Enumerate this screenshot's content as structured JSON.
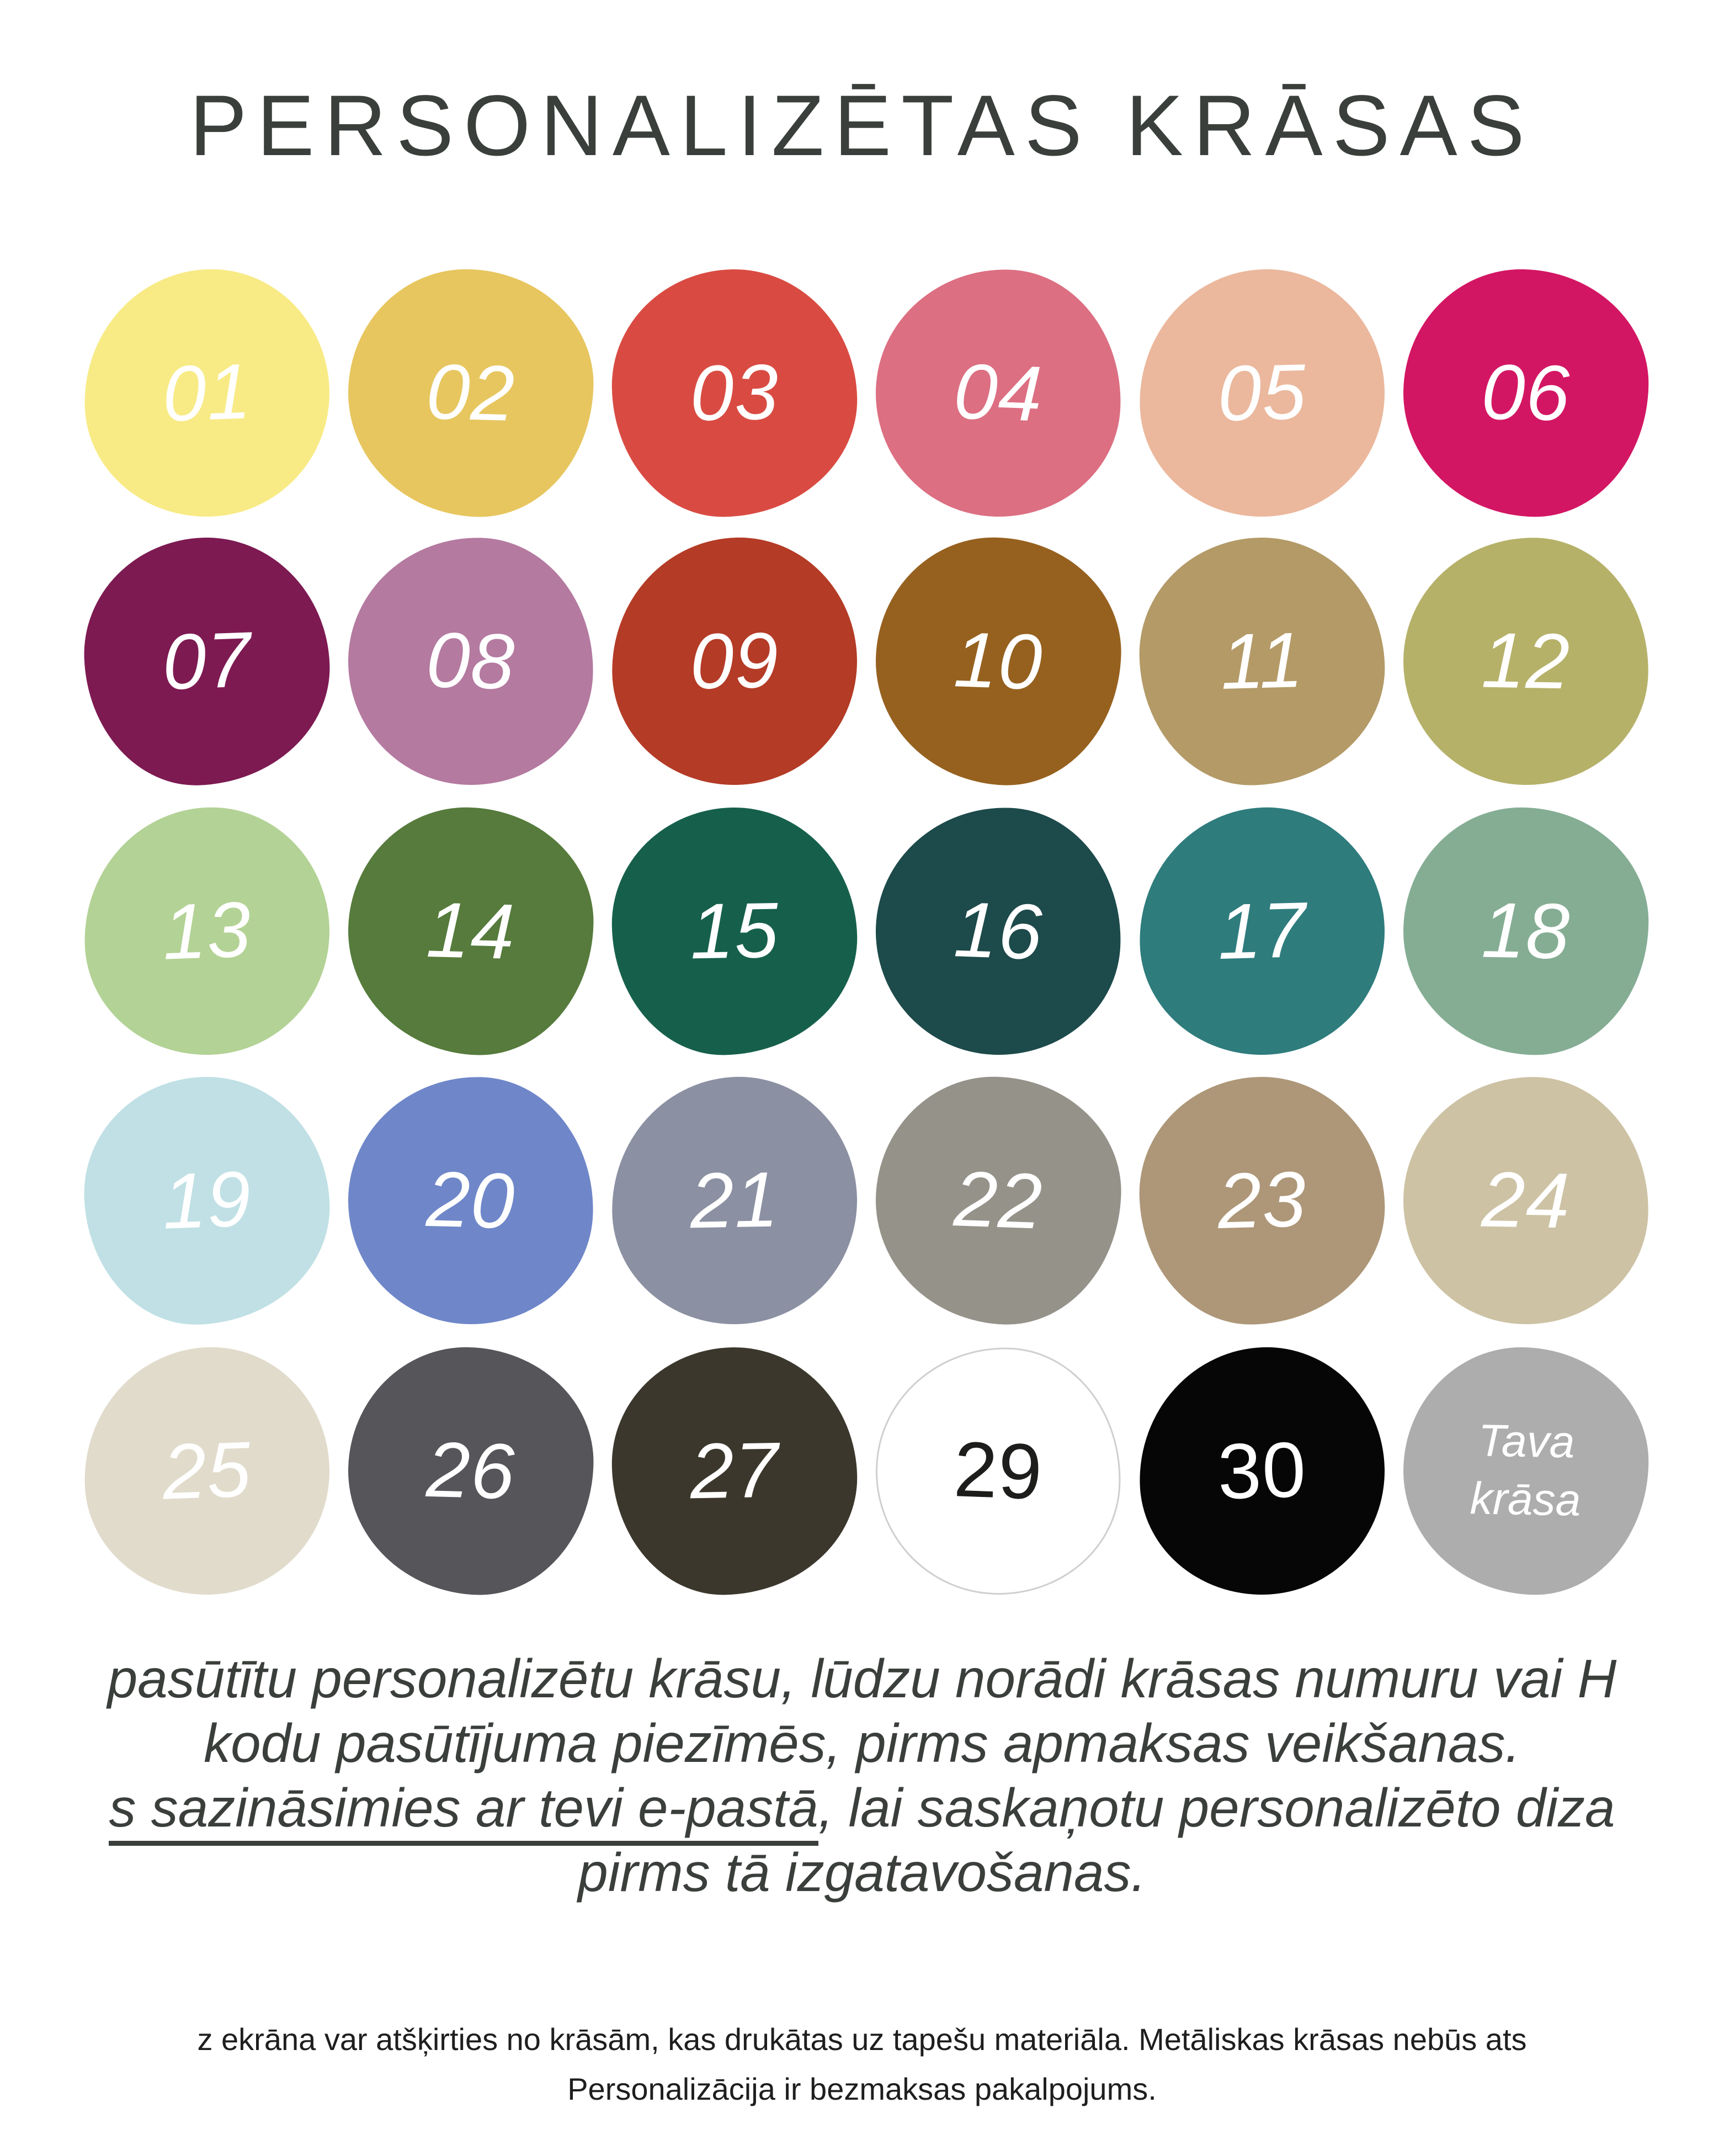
{
  "header": {
    "title": "PERSONALIZĒTAS KRĀSAS",
    "title_color": "#3a3f3b"
  },
  "swatches": [
    {
      "label": "01",
      "color": "#F8EB86",
      "text_color": "#FFFFFF",
      "italic": true
    },
    {
      "label": "02",
      "color": "#E7C65F",
      "text_color": "#FFFFFF",
      "italic": true
    },
    {
      "label": "03",
      "color": "#D94B42",
      "text_color": "#FFFFFF",
      "italic": true
    },
    {
      "label": "04",
      "color": "#DC6F82",
      "text_color": "#FFFFFF",
      "italic": true
    },
    {
      "label": "05",
      "color": "#EBB89D",
      "text_color": "#FFFFFF",
      "italic": true
    },
    {
      "label": "06",
      "color": "#D31663",
      "text_color": "#FFFFFF",
      "italic": true
    },
    {
      "label": "07",
      "color": "#7D1A52",
      "text_color": "#FFFFFF",
      "italic": true
    },
    {
      "label": "08",
      "color": "#B47AA0",
      "text_color": "#FFFFFF",
      "italic": true
    },
    {
      "label": "09",
      "color": "#B43B26",
      "text_color": "#FFFFFF",
      "italic": true
    },
    {
      "label": "10",
      "color": "#96611F",
      "text_color": "#FFFFFF",
      "italic": true
    },
    {
      "label": "11",
      "color": "#B39A67",
      "text_color": "#FFFFFF",
      "italic": true
    },
    {
      "label": "12",
      "color": "#B6B169",
      "text_color": "#FFFFFF",
      "italic": true
    },
    {
      "label": "13",
      "color": "#B3D295",
      "text_color": "#FFFFFF",
      "italic": true
    },
    {
      "label": "14",
      "color": "#567B3C",
      "text_color": "#FFFFFF",
      "italic": true
    },
    {
      "label": "15",
      "color": "#16604B",
      "text_color": "#FFFFFF",
      "italic": true
    },
    {
      "label": "16",
      "color": "#1D4A4B",
      "text_color": "#FFFFFF",
      "italic": true
    },
    {
      "label": "17",
      "color": "#2F7C7D",
      "text_color": "#FFFFFF",
      "italic": true
    },
    {
      "label": "18",
      "color": "#85AD94",
      "text_color": "#FFFFFF",
      "italic": true
    },
    {
      "label": "19",
      "color": "#C0E0E5",
      "text_color": "#FFFFFF",
      "italic": true
    },
    {
      "label": "20",
      "color": "#6F87C9",
      "text_color": "#FFFFFF",
      "italic": true
    },
    {
      "label": "21",
      "color": "#8B90A2",
      "text_color": "#FFFFFF",
      "italic": true
    },
    {
      "label": "22",
      "color": "#95928A",
      "text_color": "#FFFFFF",
      "italic": true
    },
    {
      "label": "23",
      "color": "#AD9778",
      "text_color": "#FFFFFF",
      "italic": true
    },
    {
      "label": "24",
      "color": "#CDC2A4",
      "text_color": "#FFFFFF",
      "italic": true
    },
    {
      "label": "25",
      "color": "#E1DBCC",
      "text_color": "#FFFFFF",
      "italic": true
    },
    {
      "label": "26",
      "color": "#55555A",
      "text_color": "#FFFFFF",
      "italic": true
    },
    {
      "label": "27",
      "color": "#3B372C",
      "text_color": "#FFFFFF",
      "italic": true
    },
    {
      "label": "29",
      "color": "#FFFFFF",
      "text_color": "#1D1D1B",
      "italic": false,
      "outline": "#CFCFCF"
    },
    {
      "label": "30",
      "color": "#060606",
      "text_color": "#FFFFFF",
      "italic": false
    },
    {
      "label": "Tava krāsa",
      "lines": [
        "Tava",
        "krāsa"
      ],
      "color": "#ADADAD",
      "text_color": "#FFFFFF",
      "italic": true
    }
  ],
  "paragraph": {
    "line1": "pasūtītu personalizētu krāsu, lūdzu norādi krāsas numuru vai H",
    "line2": "kodu pasūtījuma piezīmēs, pirms apmaksas veikšanas.",
    "line3_underlined": "s sazināsimies ar tevi e-pastā",
    "line3_rest": ", lai saskaņotu personalizēto diza",
    "line4": "pirms tā izgatavošanas."
  },
  "footnote": {
    "line1": "z ekrāna var atšķirties no krāsām, kas drukātas uz tapešu materiāla. Metāliskas krāsas nebūs ats",
    "line2": "Personalizācija ir bezmaksas pakalpojums."
  }
}
